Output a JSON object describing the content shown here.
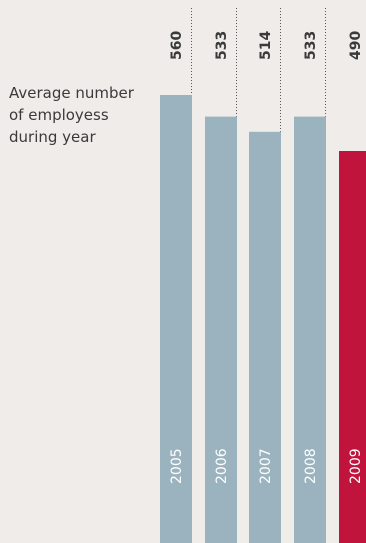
{
  "chart_data": {
    "type": "bar",
    "title_lines": [
      "Average number",
      "of employess",
      "during year"
    ],
    "categories": [
      "2005",
      "2006",
      "2007",
      "2008",
      "2009"
    ],
    "values": [
      560,
      533,
      514,
      533,
      490
    ],
    "value_labels": [
      "560",
      "533",
      "514",
      "533",
      "490"
    ],
    "colors": {
      "background": "#f0ece9",
      "bar": "#9bb3bf",
      "highlight_bar": "#c0143c",
      "leader_line": "#555555",
      "text": "#3a3a3a",
      "category_label": "#ffffff"
    },
    "highlight_index": 4,
    "ylim": [
      0,
      560
    ],
    "grid": false,
    "legend": "none"
  }
}
